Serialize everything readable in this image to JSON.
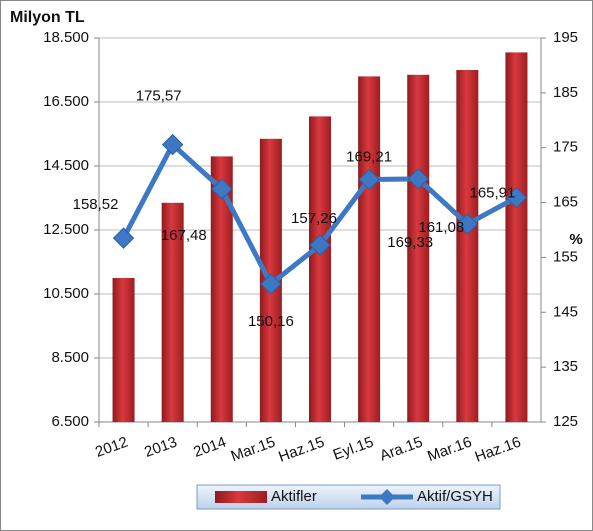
{
  "chart_data": {
    "type": "bar-line",
    "y_label": "Milyon TL",
    "y2_label": "%",
    "categories": [
      "2012",
      "2013",
      "2014",
      "Mar.15",
      "Haz.15",
      "Eyl.15",
      "Ara.15",
      "Mar.16",
      "Haz.16"
    ],
    "series": [
      {
        "name": "Aktifler",
        "color": "#c0272d",
        "type": "bar",
        "values": [
          11000,
          13350,
          14800,
          15350,
          16050,
          17300,
          17350,
          17500,
          18050
        ]
      },
      {
        "name": "Aktif/GSYH",
        "color": "#3c78c3",
        "type": "line",
        "axis": "y2",
        "values": [
          158.52,
          175.57,
          167.48,
          150.16,
          157.26,
          169.21,
          169.33,
          161.08,
          165.91
        ],
        "value_labels": [
          "158,52",
          "175,57",
          "167,48",
          "150,16",
          "157,26",
          "169,21",
          "169,33",
          "161,08",
          "165,91"
        ]
      }
    ],
    "ylim": [
      6500,
      18500
    ],
    "yticks": [
      {
        "value": 6500,
        "label": "6.500"
      },
      {
        "value": 8500,
        "label": "8.500"
      },
      {
        "value": 10500,
        "label": "10.500"
      },
      {
        "value": 12500,
        "label": "12.500"
      },
      {
        "value": 14500,
        "label": "14.500"
      },
      {
        "value": 16500,
        "label": "16.500"
      },
      {
        "value": 18500,
        "label": "18.500"
      }
    ],
    "y2lim": [
      125,
      195
    ],
    "y2ticks": [
      125,
      135,
      145,
      155,
      165,
      175,
      185,
      195
    ],
    "grid": true,
    "legend": "bottom"
  }
}
